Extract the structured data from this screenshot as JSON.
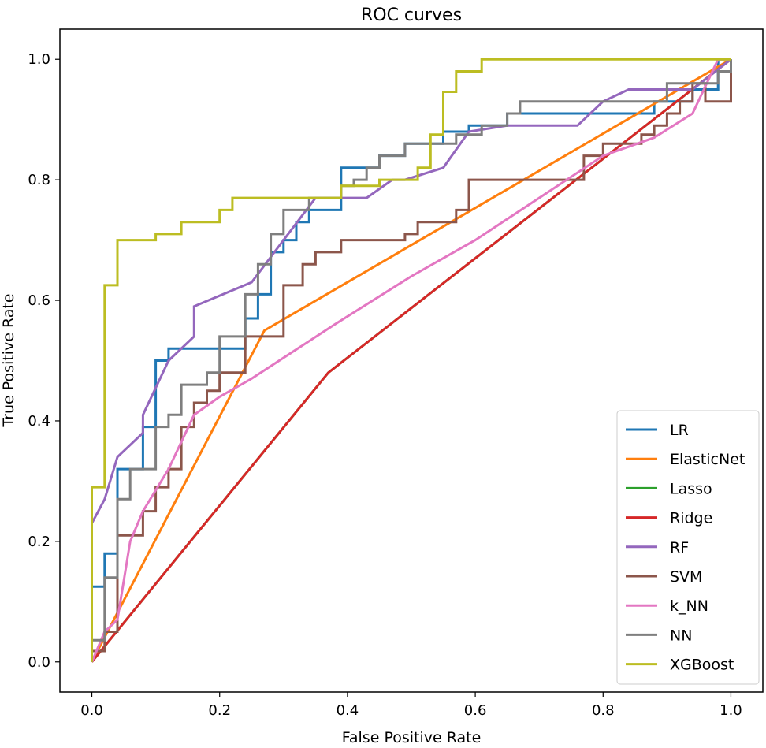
{
  "chart_data": {
    "type": "line",
    "title": "ROC curves",
    "xlabel": "False Positive Rate",
    "ylabel": "True Positive Rate",
    "xlim": [
      -0.05,
      1.05
    ],
    "ylim": [
      -0.05,
      1.05
    ],
    "xticks": [
      "0.0",
      "0.2",
      "0.4",
      "0.6",
      "0.8",
      "1.0"
    ],
    "yticks": [
      "0.0",
      "0.2",
      "0.4",
      "0.6",
      "0.8",
      "1.0"
    ],
    "grid": false,
    "legend_position": "lower-right",
    "series": [
      {
        "name": "LR",
        "color": "#1f77b4",
        "points": [
          [
            0,
            0
          ],
          [
            0,
            0.125
          ],
          [
            0.02,
            0.125
          ],
          [
            0.02,
            0.18
          ],
          [
            0.04,
            0.18
          ],
          [
            0.04,
            0.32
          ],
          [
            0.08,
            0.32
          ],
          [
            0.08,
            0.39
          ],
          [
            0.1,
            0.39
          ],
          [
            0.1,
            0.5
          ],
          [
            0.12,
            0.5
          ],
          [
            0.12,
            0.52
          ],
          [
            0.24,
            0.52
          ],
          [
            0.24,
            0.57
          ],
          [
            0.26,
            0.57
          ],
          [
            0.26,
            0.61
          ],
          [
            0.28,
            0.61
          ],
          [
            0.28,
            0.68
          ],
          [
            0.3,
            0.68
          ],
          [
            0.3,
            0.7
          ],
          [
            0.32,
            0.7
          ],
          [
            0.32,
            0.73
          ],
          [
            0.34,
            0.73
          ],
          [
            0.34,
            0.75
          ],
          [
            0.39,
            0.75
          ],
          [
            0.39,
            0.82
          ],
          [
            0.45,
            0.82
          ],
          [
            0.45,
            0.84
          ],
          [
            0.49,
            0.84
          ],
          [
            0.49,
            0.86
          ],
          [
            0.55,
            0.86
          ],
          [
            0.55,
            0.88
          ],
          [
            0.59,
            0.88
          ],
          [
            0.59,
            0.89
          ],
          [
            0.65,
            0.89
          ],
          [
            0.65,
            0.91
          ],
          [
            0.88,
            0.91
          ],
          [
            0.88,
            0.93
          ],
          [
            0.94,
            0.93
          ],
          [
            0.94,
            0.95
          ],
          [
            0.98,
            0.95
          ],
          [
            0.98,
            1.0
          ],
          [
            1.0,
            1.0
          ]
        ]
      },
      {
        "name": "ElasticNet",
        "color": "#ff7f0e",
        "points": [
          [
            0,
            0
          ],
          [
            0.27,
            0.55
          ],
          [
            1.0,
            1.0
          ]
        ]
      },
      {
        "name": "Lasso",
        "color": "#2ca02c",
        "points": [
          [
            0,
            0
          ],
          [
            0.37,
            0.48
          ],
          [
            1.0,
            1.0
          ]
        ]
      },
      {
        "name": "Ridge",
        "color": "#d62728",
        "points": [
          [
            0,
            0
          ],
          [
            0.37,
            0.48
          ],
          [
            1.0,
            1.0
          ]
        ]
      },
      {
        "name": "RF",
        "color": "#9467bd",
        "points": [
          [
            0,
            0.23
          ],
          [
            0.02,
            0.27
          ],
          [
            0.04,
            0.34
          ],
          [
            0.08,
            0.38
          ],
          [
            0.08,
            0.41
          ],
          [
            0.12,
            0.5
          ],
          [
            0.16,
            0.54
          ],
          [
            0.16,
            0.59
          ],
          [
            0.25,
            0.63
          ],
          [
            0.3,
            0.7
          ],
          [
            0.35,
            0.77
          ],
          [
            0.43,
            0.77
          ],
          [
            0.47,
            0.8
          ],
          [
            0.49,
            0.8
          ],
          [
            0.55,
            0.82
          ],
          [
            0.59,
            0.88
          ],
          [
            0.65,
            0.89
          ],
          [
            0.76,
            0.89
          ],
          [
            0.8,
            0.93
          ],
          [
            0.84,
            0.95
          ],
          [
            0.94,
            0.95
          ],
          [
            1.0,
            1.0
          ]
        ]
      },
      {
        "name": "SVM",
        "color": "#8c564b",
        "points": [
          [
            0,
            0
          ],
          [
            0,
            0.018
          ],
          [
            0.02,
            0.018
          ],
          [
            0.02,
            0.05
          ],
          [
            0.04,
            0.05
          ],
          [
            0.04,
            0.21
          ],
          [
            0.08,
            0.21
          ],
          [
            0.08,
            0.25
          ],
          [
            0.1,
            0.25
          ],
          [
            0.1,
            0.29
          ],
          [
            0.12,
            0.29
          ],
          [
            0.12,
            0.32
          ],
          [
            0.14,
            0.32
          ],
          [
            0.14,
            0.39
          ],
          [
            0.16,
            0.39
          ],
          [
            0.16,
            0.43
          ],
          [
            0.18,
            0.43
          ],
          [
            0.18,
            0.45
          ],
          [
            0.2,
            0.45
          ],
          [
            0.2,
            0.48
          ],
          [
            0.24,
            0.48
          ],
          [
            0.24,
            0.54
          ],
          [
            0.3,
            0.54
          ],
          [
            0.3,
            0.625
          ],
          [
            0.33,
            0.625
          ],
          [
            0.33,
            0.66
          ],
          [
            0.35,
            0.66
          ],
          [
            0.35,
            0.68
          ],
          [
            0.39,
            0.68
          ],
          [
            0.39,
            0.7
          ],
          [
            0.49,
            0.7
          ],
          [
            0.49,
            0.71
          ],
          [
            0.51,
            0.71
          ],
          [
            0.51,
            0.73
          ],
          [
            0.55,
            0.73
          ],
          [
            0.55,
            0.73
          ],
          [
            0.57,
            0.73
          ],
          [
            0.57,
            0.75
          ],
          [
            0.59,
            0.75
          ],
          [
            0.59,
            0.8
          ],
          [
            0.77,
            0.8
          ],
          [
            0.77,
            0.84
          ],
          [
            0.8,
            0.84
          ],
          [
            0.8,
            0.86
          ],
          [
            0.86,
            0.86
          ],
          [
            0.86,
            0.875
          ],
          [
            0.88,
            0.875
          ],
          [
            0.88,
            0.89
          ],
          [
            0.9,
            0.89
          ],
          [
            0.9,
            0.91
          ],
          [
            0.92,
            0.91
          ],
          [
            0.92,
            0.93
          ],
          [
            0.94,
            0.93
          ],
          [
            0.94,
            0.96
          ],
          [
            0.96,
            0.96
          ],
          [
            0.96,
            0.93
          ],
          [
            1.0,
            0.93
          ],
          [
            1.0,
            1.0
          ]
        ]
      },
      {
        "name": "k_NN",
        "color": "#e377c2",
        "points": [
          [
            0,
            0
          ],
          [
            0.02,
            0.05
          ],
          [
            0.04,
            0.07
          ],
          [
            0.06,
            0.2
          ],
          [
            0.08,
            0.25
          ],
          [
            0.12,
            0.32
          ],
          [
            0.16,
            0.41
          ],
          [
            0.2,
            0.44
          ],
          [
            0.25,
            0.47
          ],
          [
            0.38,
            0.56
          ],
          [
            0.5,
            0.64
          ],
          [
            0.6,
            0.7
          ],
          [
            0.7,
            0.77
          ],
          [
            0.8,
            0.84
          ],
          [
            0.88,
            0.87
          ],
          [
            0.94,
            0.91
          ],
          [
            0.98,
            1.0
          ],
          [
            1.0,
            1.0
          ]
        ]
      },
      {
        "name": "NN",
        "color": "#7f7f7f",
        "points": [
          [
            0,
            0
          ],
          [
            0,
            0.036
          ],
          [
            0.02,
            0.036
          ],
          [
            0.02,
            0.14
          ],
          [
            0.04,
            0.14
          ],
          [
            0.04,
            0.27
          ],
          [
            0.06,
            0.27
          ],
          [
            0.06,
            0.32
          ],
          [
            0.1,
            0.32
          ],
          [
            0.1,
            0.39
          ],
          [
            0.12,
            0.39
          ],
          [
            0.12,
            0.41
          ],
          [
            0.14,
            0.41
          ],
          [
            0.14,
            0.46
          ],
          [
            0.18,
            0.46
          ],
          [
            0.18,
            0.48
          ],
          [
            0.2,
            0.48
          ],
          [
            0.2,
            0.54
          ],
          [
            0.24,
            0.54
          ],
          [
            0.24,
            0.61
          ],
          [
            0.26,
            0.61
          ],
          [
            0.26,
            0.66
          ],
          [
            0.28,
            0.66
          ],
          [
            0.28,
            0.71
          ],
          [
            0.3,
            0.71
          ],
          [
            0.3,
            0.75
          ],
          [
            0.34,
            0.75
          ],
          [
            0.34,
            0.77
          ],
          [
            0.39,
            0.77
          ],
          [
            0.39,
            0.79
          ],
          [
            0.41,
            0.79
          ],
          [
            0.41,
            0.8
          ],
          [
            0.43,
            0.8
          ],
          [
            0.43,
            0.82
          ],
          [
            0.45,
            0.82
          ],
          [
            0.45,
            0.84
          ],
          [
            0.49,
            0.84
          ],
          [
            0.49,
            0.86
          ],
          [
            0.57,
            0.86
          ],
          [
            0.57,
            0.875
          ],
          [
            0.61,
            0.875
          ],
          [
            0.61,
            0.89
          ],
          [
            0.65,
            0.89
          ],
          [
            0.65,
            0.91
          ],
          [
            0.67,
            0.91
          ],
          [
            0.67,
            0.93
          ],
          [
            0.9,
            0.93
          ],
          [
            0.9,
            0.96
          ],
          [
            0.98,
            0.96
          ],
          [
            0.98,
            0.98
          ],
          [
            1.0,
            0.98
          ],
          [
            1.0,
            1.0
          ]
        ]
      },
      {
        "name": "XGBoost",
        "color": "#bcbd22",
        "points": [
          [
            0,
            0
          ],
          [
            0,
            0.29
          ],
          [
            0.02,
            0.29
          ],
          [
            0.02,
            0.625
          ],
          [
            0.04,
            0.625
          ],
          [
            0.04,
            0.7
          ],
          [
            0.1,
            0.7
          ],
          [
            0.1,
            0.71
          ],
          [
            0.14,
            0.71
          ],
          [
            0.14,
            0.73
          ],
          [
            0.2,
            0.73
          ],
          [
            0.2,
            0.75
          ],
          [
            0.22,
            0.75
          ],
          [
            0.22,
            0.77
          ],
          [
            0.37,
            0.77
          ],
          [
            0.37,
            0.77
          ],
          [
            0.39,
            0.77
          ],
          [
            0.39,
            0.79
          ],
          [
            0.45,
            0.79
          ],
          [
            0.45,
            0.8
          ],
          [
            0.51,
            0.8
          ],
          [
            0.51,
            0.82
          ],
          [
            0.53,
            0.82
          ],
          [
            0.53,
            0.875
          ],
          [
            0.55,
            0.875
          ],
          [
            0.55,
            0.946
          ],
          [
            0.57,
            0.946
          ],
          [
            0.57,
            0.98
          ],
          [
            0.61,
            0.98
          ],
          [
            0.61,
            1.0
          ],
          [
            1.0,
            1.0
          ]
        ]
      }
    ]
  }
}
